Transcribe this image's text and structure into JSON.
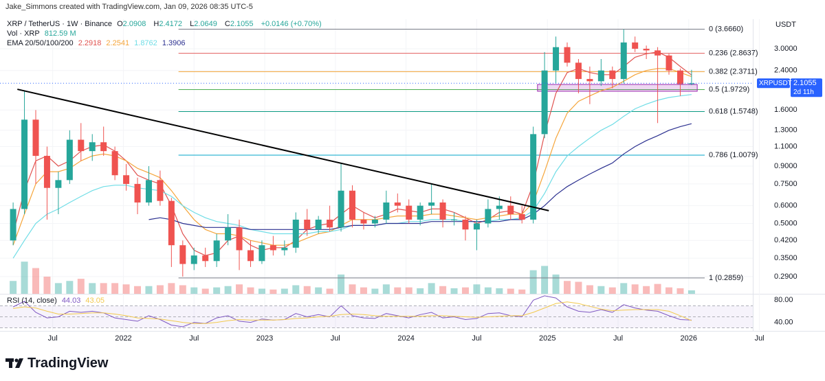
{
  "chart_data": {
    "type": "candlestick",
    "credit": "Jake_Simmons created with TradingView.com, Jan 09, 2026 08:35 UTC-5",
    "symbol": "XRP / TetherUS · 1W · Binance",
    "ohlc_letters": [
      "O",
      "H",
      "L",
      "C"
    ],
    "change": "+0.0146 (+0.70%)",
    "currency": "USDT",
    "log_scale": true,
    "grid": true,
    "up_color": "#26a69a",
    "down_color": "#ef5350",
    "xlim": [
      2021.166,
      2026.429
    ],
    "xticks": [
      {
        "value": 2021.5,
        "label": "Jul"
      },
      2022,
      {
        "value": 2022.5,
        "label": "Jul"
      },
      2023,
      {
        "value": 2023.5,
        "label": "Jul"
      },
      2024,
      {
        "value": 2024.5,
        "label": "Jul"
      },
      2025,
      {
        "value": 2025.5,
        "label": "Jul"
      },
      2026,
      {
        "value": 2026.5,
        "label": "Jul"
      }
    ],
    "ylim": [
      0.243,
      3.866
    ],
    "yticks": [
      {
        "value": 3,
        "label": "3.0000"
      },
      {
        "value": 2.4,
        "label": "2.4000"
      },
      {
        "value": 1.6,
        "label": "1.6000"
      },
      {
        "value": 1.3,
        "label": "1.3000"
      },
      {
        "value": 1.1,
        "label": "1.1000"
      },
      {
        "value": 0.9,
        "label": "0.9000"
      },
      {
        "value": 0.75,
        "label": "0.7500"
      },
      {
        "value": 0.6,
        "label": "0.6000"
      },
      {
        "value": 0.5,
        "label": "0.5000"
      },
      {
        "value": 0.42,
        "label": "0.4200"
      },
      {
        "value": 0.35,
        "label": "0.3500"
      },
      {
        "value": 0.29,
        "label": "0.2900"
      }
    ],
    "x": [
      2021.22,
      2021.3,
      2021.38,
      2021.46,
      2021.54,
      2021.62,
      2021.7,
      2021.78,
      2021.86,
      2021.94,
      2022.02,
      2022.1,
      2022.18,
      2022.26,
      2022.34,
      2022.42,
      2022.5,
      2022.58,
      2022.66,
      2022.74,
      2022.82,
      2022.9,
      2022.98,
      2023.06,
      2023.14,
      2023.22,
      2023.3,
      2023.38,
      2023.46,
      2023.54,
      2023.62,
      2023.7,
      2023.78,
      2023.86,
      2023.94,
      2024.02,
      2024.1,
      2024.18,
      2024.26,
      2024.34,
      2024.42,
      2024.5,
      2024.58,
      2024.66,
      2024.74,
      2024.82,
      2024.9,
      2024.98,
      2025.06,
      2025.14,
      2025.22,
      2025.3,
      2025.38,
      2025.46,
      2025.54,
      2025.62,
      2025.7,
      2025.78,
      2025.86,
      2025.94,
      2026.02
    ],
    "candles": [
      [
        0.42,
        0.62,
        0.4,
        0.58
      ],
      [
        0.58,
        1.96,
        0.55,
        1.45
      ],
      [
        1.45,
        1.6,
        0.75,
        1.0
      ],
      [
        1.0,
        1.1,
        0.52,
        0.72
      ],
      [
        0.72,
        0.85,
        0.55,
        0.78
      ],
      [
        0.78,
        1.3,
        0.75,
        1.18
      ],
      [
        1.18,
        1.4,
        0.95,
        1.05
      ],
      [
        1.05,
        1.25,
        0.95,
        1.15
      ],
      [
        1.15,
        1.35,
        1.0,
        1.05
      ],
      [
        1.05,
        1.1,
        0.78,
        0.82
      ],
      [
        0.82,
        0.92,
        0.7,
        0.75
      ],
      [
        0.75,
        0.8,
        0.55,
        0.62
      ],
      [
        0.62,
        0.9,
        0.6,
        0.78
      ],
      [
        0.78,
        0.86,
        0.6,
        0.63
      ],
      [
        0.63,
        0.65,
        0.32,
        0.4
      ],
      [
        0.4,
        0.42,
        0.29,
        0.33
      ],
      [
        0.33,
        0.39,
        0.31,
        0.36
      ],
      [
        0.36,
        0.39,
        0.32,
        0.34
      ],
      [
        0.34,
        0.45,
        0.32,
        0.42
      ],
      [
        0.42,
        0.55,
        0.4,
        0.48
      ],
      [
        0.48,
        0.52,
        0.31,
        0.38
      ],
      [
        0.38,
        0.42,
        0.32,
        0.34
      ],
      [
        0.34,
        0.42,
        0.33,
        0.4
      ],
      [
        0.4,
        0.44,
        0.36,
        0.38
      ],
      [
        0.38,
        0.42,
        0.36,
        0.39
      ],
      [
        0.39,
        0.56,
        0.37,
        0.52
      ],
      [
        0.52,
        0.58,
        0.44,
        0.47
      ],
      [
        0.47,
        0.54,
        0.45,
        0.52
      ],
      [
        0.52,
        0.6,
        0.46,
        0.48
      ],
      [
        0.48,
        0.93,
        0.46,
        0.7
      ],
      [
        0.7,
        0.74,
        0.48,
        0.52
      ],
      [
        0.52,
        0.56,
        0.47,
        0.5
      ],
      [
        0.5,
        0.54,
        0.48,
        0.52
      ],
      [
        0.52,
        0.7,
        0.5,
        0.62
      ],
      [
        0.62,
        0.68,
        0.56,
        0.6
      ],
      [
        0.6,
        0.64,
        0.5,
        0.52
      ],
      [
        0.52,
        0.62,
        0.49,
        0.6
      ],
      [
        0.6,
        0.75,
        0.55,
        0.62
      ],
      [
        0.62,
        0.64,
        0.48,
        0.52
      ],
      [
        0.52,
        0.56,
        0.49,
        0.52
      ],
      [
        0.52,
        0.54,
        0.42,
        0.47
      ],
      [
        0.47,
        0.52,
        0.38,
        0.5
      ],
      [
        0.5,
        0.64,
        0.48,
        0.58
      ],
      [
        0.58,
        0.66,
        0.52,
        0.6
      ],
      [
        0.6,
        0.66,
        0.52,
        0.55
      ],
      [
        0.55,
        0.6,
        0.5,
        0.52
      ],
      [
        0.52,
        1.35,
        0.5,
        1.25
      ],
      [
        1.25,
        2.9,
        1.2,
        2.4
      ],
      [
        2.4,
        3.4,
        2.1,
        3.05
      ],
      [
        3.05,
        3.2,
        2.5,
        2.6
      ],
      [
        2.6,
        2.7,
        1.9,
        2.2
      ],
      [
        2.2,
        2.5,
        1.7,
        2.15
      ],
      [
        2.15,
        2.7,
        2.05,
        2.4
      ],
      [
        2.4,
        2.5,
        2.0,
        2.2
      ],
      [
        2.2,
        3.66,
        2.1,
        3.2
      ],
      [
        3.2,
        3.4,
        2.9,
        3.0
      ],
      [
        3.0,
        3.1,
        2.7,
        2.95
      ],
      [
        2.95,
        3.05,
        1.4,
        2.8
      ],
      [
        2.8,
        2.85,
        2.3,
        2.4
      ],
      [
        2.4,
        2.45,
        1.85,
        2.09
      ],
      [
        2.0908,
        2.4172,
        2.0649,
        2.1055
      ]
    ],
    "ema": {
      "label": "EMA 20/50/100/200",
      "series": [
        {
          "color": "#e0524f",
          "values": [
            0.45,
            0.7,
            0.95,
            1.0,
            0.9,
            0.95,
            1.05,
            1.1,
            1.12,
            1.05,
            0.95,
            0.82,
            0.78,
            0.75,
            0.6,
            0.45,
            0.38,
            0.36,
            0.37,
            0.42,
            0.44,
            0.4,
            0.38,
            0.39,
            0.39,
            0.42,
            0.47,
            0.49,
            0.5,
            0.55,
            0.6,
            0.56,
            0.53,
            0.55,
            0.58,
            0.57,
            0.56,
            0.58,
            0.58,
            0.56,
            0.53,
            0.5,
            0.52,
            0.56,
            0.57,
            0.55,
            0.75,
            1.25,
            1.9,
            2.35,
            2.45,
            2.35,
            2.3,
            2.3,
            2.5,
            2.75,
            2.85,
            2.9,
            2.75,
            2.5,
            2.2918
          ]
        },
        {
          "color": "#f5a53a",
          "values": [
            0.4,
            0.55,
            0.75,
            0.85,
            0.85,
            0.88,
            0.95,
            1.0,
            1.02,
            1.0,
            0.95,
            0.88,
            0.84,
            0.8,
            0.7,
            0.6,
            0.52,
            0.47,
            0.45,
            0.45,
            0.44,
            0.42,
            0.41,
            0.4,
            0.4,
            0.41,
            0.43,
            0.45,
            0.46,
            0.49,
            0.52,
            0.52,
            0.52,
            0.53,
            0.54,
            0.54,
            0.54,
            0.55,
            0.55,
            0.54,
            0.53,
            0.52,
            0.53,
            0.54,
            0.55,
            0.55,
            0.62,
            0.85,
            1.2,
            1.55,
            1.75,
            1.85,
            1.95,
            2.02,
            2.15,
            2.3,
            2.4,
            2.45,
            2.45,
            2.35,
            2.2541
          ]
        },
        {
          "color": "#6fdde6",
          "values": [
            0.35,
            0.42,
            0.5,
            0.55,
            0.58,
            0.62,
            0.66,
            0.7,
            0.73,
            0.74,
            0.74,
            0.72,
            0.71,
            0.7,
            0.66,
            0.6,
            0.56,
            0.53,
            0.51,
            0.5,
            0.49,
            0.47,
            0.46,
            0.45,
            0.45,
            0.45,
            0.45,
            0.46,
            0.46,
            0.47,
            0.49,
            0.49,
            0.49,
            0.5,
            0.5,
            0.51,
            0.51,
            0.52,
            0.52,
            0.52,
            0.51,
            0.51,
            0.51,
            0.52,
            0.52,
            0.53,
            0.57,
            0.68,
            0.85,
            1.0,
            1.1,
            1.2,
            1.3,
            1.38,
            1.5,
            1.62,
            1.7,
            1.77,
            1.82,
            1.85,
            1.8762
          ]
        },
        {
          "color": "#2a2f8f",
          "values": [
            null,
            null,
            null,
            null,
            null,
            null,
            null,
            null,
            null,
            null,
            null,
            null,
            0.52,
            0.53,
            0.52,
            0.5,
            0.49,
            0.48,
            0.48,
            0.48,
            0.48,
            0.47,
            0.47,
            0.47,
            0.47,
            0.47,
            0.47,
            0.47,
            0.47,
            0.48,
            0.49,
            0.49,
            0.49,
            0.5,
            0.5,
            0.5,
            0.5,
            0.51,
            0.51,
            0.51,
            0.51,
            0.51,
            0.51,
            0.51,
            0.52,
            0.52,
            0.55,
            0.6,
            0.67,
            0.73,
            0.78,
            0.83,
            0.88,
            0.93,
            1.02,
            1.1,
            1.17,
            1.23,
            1.3,
            1.35,
            1.3906
          ]
        }
      ]
    },
    "volume": {
      "label": "Vol · XRP",
      "last_label": "812.59 M",
      "ylim": [
        0,
        12000
      ],
      "values": [
        3000,
        7500,
        6000,
        4000,
        2500,
        3000,
        3500,
        2500,
        2500,
        2500,
        2200,
        1800,
        1800,
        2000,
        2500,
        2000,
        1500,
        1200,
        1500,
        1800,
        2200,
        1500,
        1200,
        1000,
        1200,
        2000,
        1800,
        1500,
        1200,
        4500,
        2200,
        1500,
        1200,
        2200,
        1500,
        1500,
        1300,
        2500,
        1800,
        1300,
        1500,
        2200,
        1500,
        1300,
        1200,
        1000,
        5500,
        6500,
        4500,
        3000,
        2800,
        2000,
        1800,
        1500,
        2500,
        2200,
        1800,
        2300,
        1500,
        1300,
        812.59
      ]
    },
    "fib": [
      {
        "label": "0 (3.6660)",
        "price": 3.666,
        "color": "#787b86"
      },
      {
        "label": "0.236 (2.8637)",
        "price": 2.8637,
        "color": "#e35d5b"
      },
      {
        "label": "0.382 (2.3711)",
        "price": 2.3711,
        "color": "#f0a030"
      },
      {
        "label": "0.5 (1.9729)",
        "price": 1.9729,
        "color": "#4caf50"
      },
      {
        "label": "0.618 (1.5748)",
        "price": 1.5748,
        "color": "#089981"
      },
      {
        "label": "0.786 (1.0079)",
        "price": 1.0079,
        "color": "#00a5c8"
      },
      {
        "label": "1 (0.2859)",
        "price": 0.2859,
        "color": "#787b86"
      }
    ],
    "fib_start": 2022.39,
    "trendline": {
      "x": [
        2021.25,
        2025.01
      ],
      "y": [
        1.98,
        0.57
      ]
    },
    "box": {
      "x": [
        2024.93,
        2026.06
      ],
      "y": [
        1.94,
        2.08
      ]
    },
    "badge": {
      "symbol": "XRPUSDT",
      "countdown": "2d 11h"
    },
    "rsi": {
      "label": "RSI (14, close)",
      "ylim": [
        25.8,
        90.3
      ],
      "yticks": [
        {
          "value": 80,
          "label": "80.00"
        },
        {
          "value": 40,
          "label": "40.00"
        }
      ],
      "levels": [
        70,
        50,
        30
      ],
      "series": [
        {
          "color": "#7e57c2",
          "values": [
            68,
            78,
            58,
            48,
            50,
            60,
            58,
            60,
            57,
            48,
            45,
            42,
            52,
            45,
            35,
            32,
            40,
            38,
            48,
            52,
            42,
            40,
            46,
            44,
            45,
            56,
            50,
            54,
            50,
            70,
            52,
            48,
            47,
            56,
            52,
            48,
            54,
            58,
            48,
            50,
            45,
            47,
            56,
            57,
            52,
            50,
            80,
            88,
            84,
            68,
            60,
            58,
            63,
            58,
            72,
            66,
            62,
            60,
            52,
            45,
            44.03
          ]
        },
        {
          "color": "#f2c94c",
          "values": [
            65,
            68,
            66,
            60,
            55,
            55,
            56,
            57,
            57,
            55,
            52,
            48,
            47,
            46,
            43,
            40,
            38,
            38,
            40,
            43,
            45,
            44,
            44,
            44,
            45,
            47,
            48,
            50,
            51,
            54,
            55,
            54,
            52,
            51,
            51,
            51,
            51,
            52,
            52,
            51,
            50,
            49,
            50,
            51,
            52,
            52,
            58,
            66,
            74,
            77,
            74,
            69,
            64,
            61,
            62,
            63,
            63,
            63,
            60,
            52,
            43.05
          ]
        }
      ]
    },
    "footer": "TradingView"
  }
}
